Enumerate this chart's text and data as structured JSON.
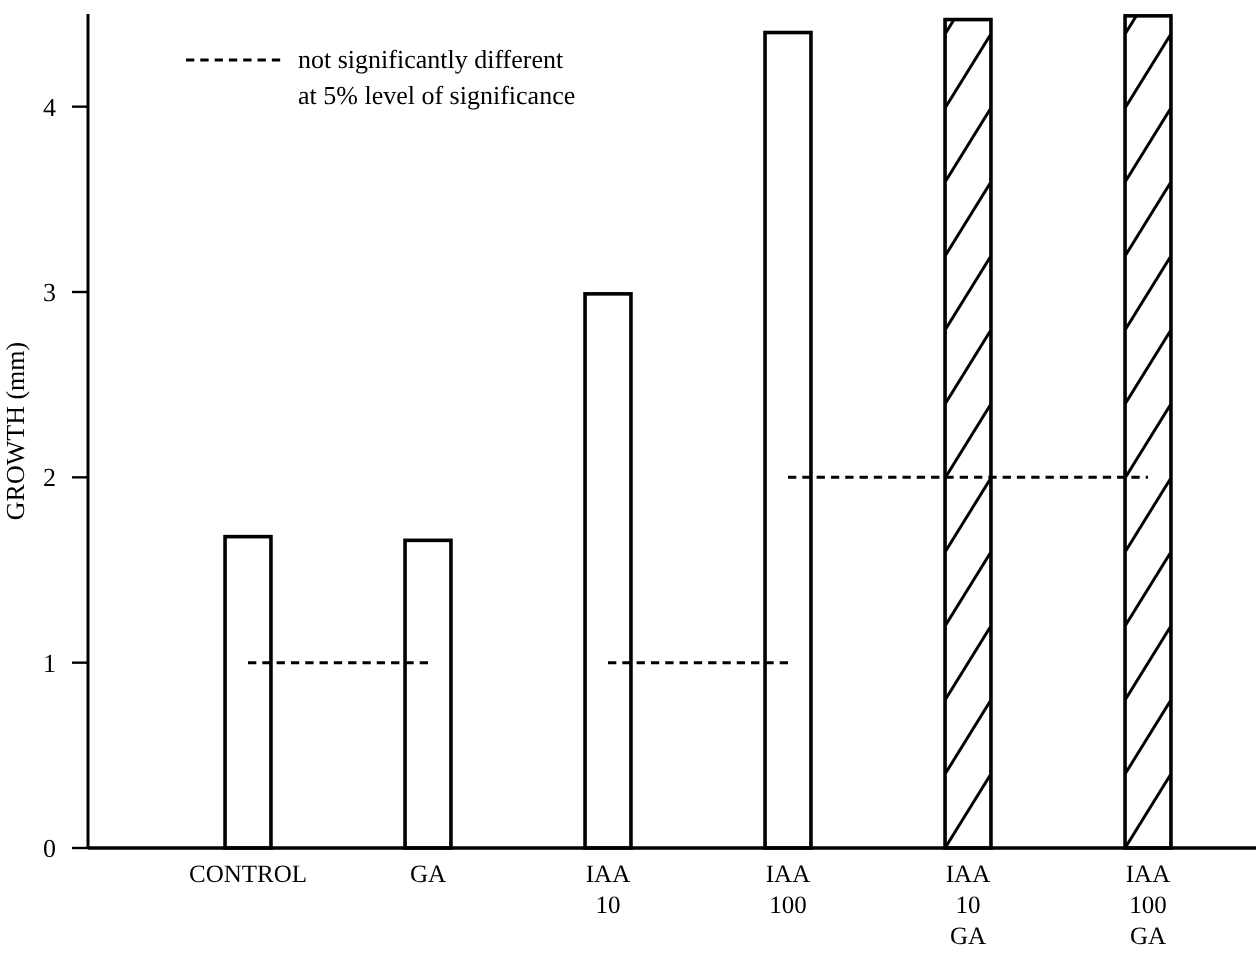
{
  "chart_data": {
    "type": "bar",
    "ylabel": "GROWTH (mm)",
    "categories": [
      "CONTROL",
      "GA",
      "IAA\n10",
      "IAA\n100",
      "IAA\n10\n\nGA",
      "IAA\n100\n\nGA"
    ],
    "series": [
      {
        "values": [
          1.68,
          1.66,
          2.99,
          4.4,
          4.47,
          4.49
        ],
        "colors": [
          "#ffffff",
          "#ffffff",
          "#ffffff",
          "#ffffff",
          "#000000",
          "#000000"
        ]
      },
      {
        "type": "line",
        "name": "not significantly different\nat 5% level of significance",
        "color": "#000000",
        "values": [
          1,
          1,
          null,
          null,
          null,
          null
        ]
      },
      {
        "type": "line",
        "color": "#000000",
        "values": [
          null,
          null,
          1,
          1,
          null,
          null
        ]
      },
      {
        "type": "line",
        "color": "#000000",
        "values": [
          null,
          null,
          null,
          2,
          2,
          2
        ]
      }
    ],
    "line_style": "dashed",
    "marker": "none",
    "legend": "top left",
    "grid": false,
    "ylim": [
      0,
      4.5
    ],
    "yticks": [
      0,
      1,
      2,
      3,
      4
    ]
  }
}
